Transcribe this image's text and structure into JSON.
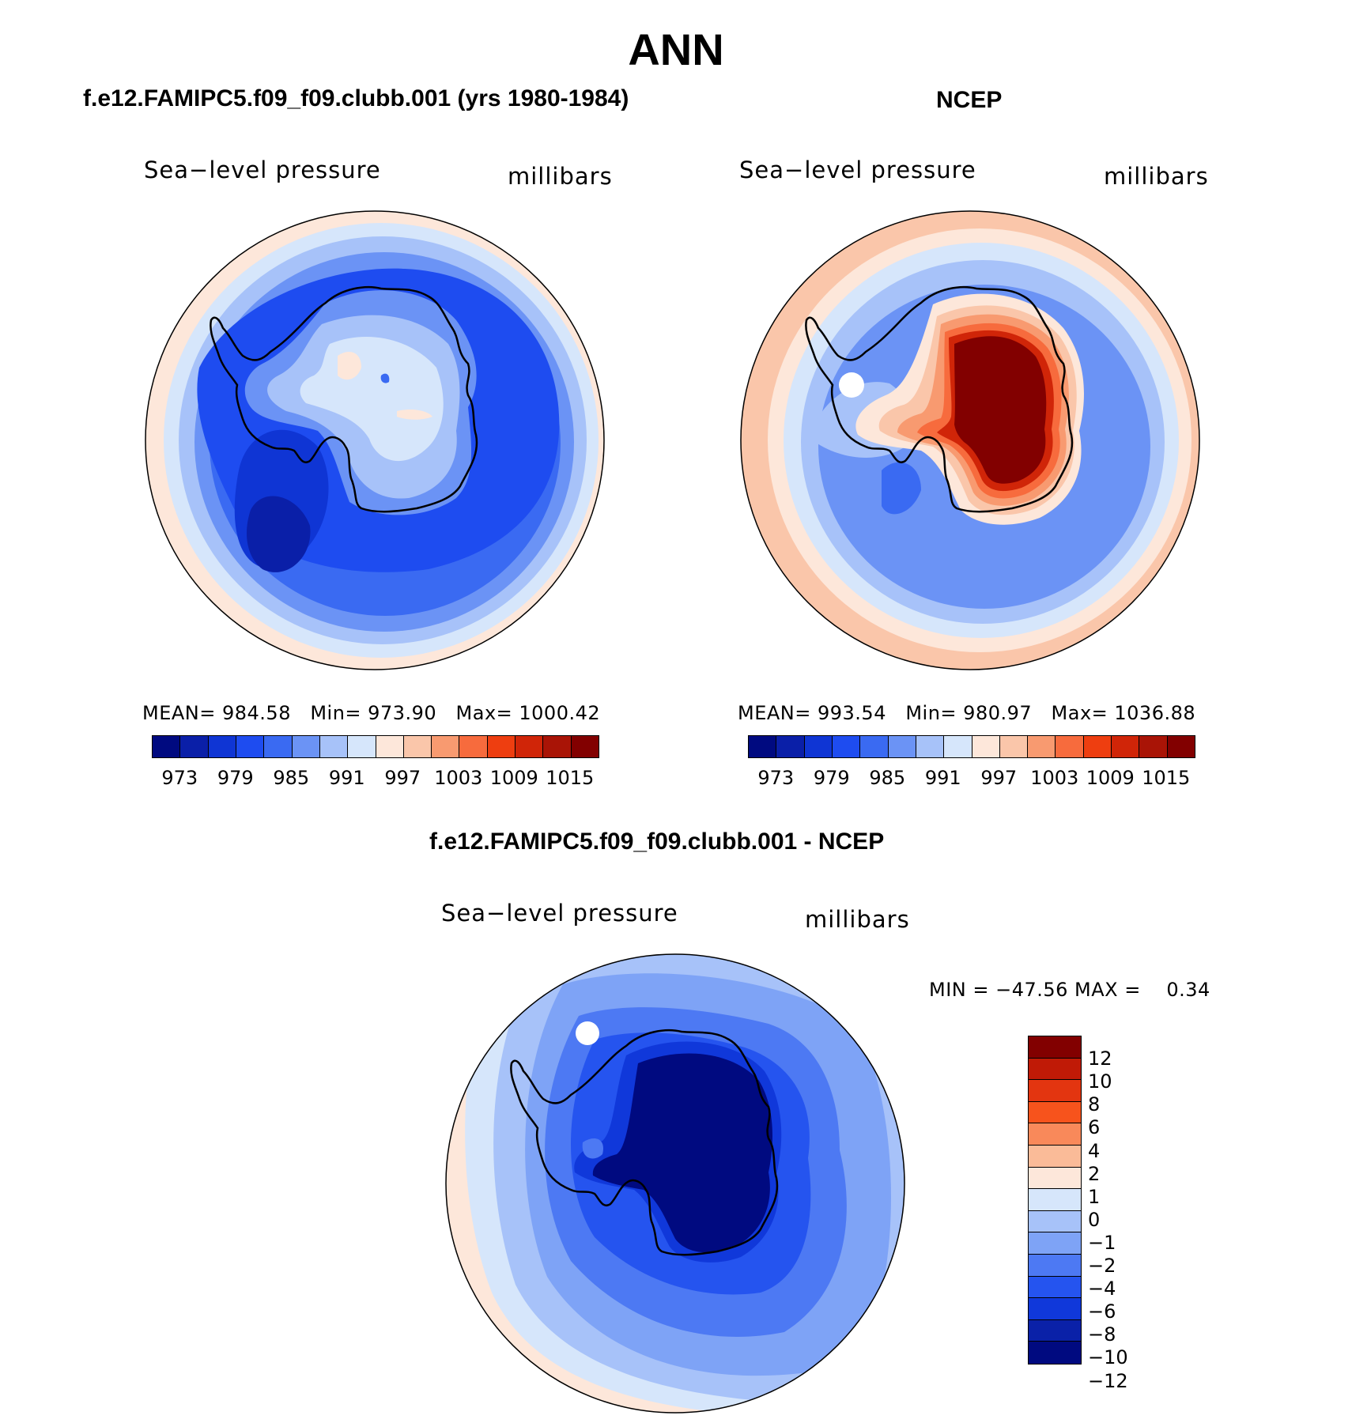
{
  "page_title": "ANN",
  "panels": {
    "model": {
      "title": "f.e12.FAMIPC5.f09_f09.clubb.001 (yrs 1980-1984)",
      "variable": "Sea−level pressure",
      "units": "millibars",
      "stats": "MEAN= 984.58   Min= 973.90   Max= 1000.42"
    },
    "obs": {
      "title": "NCEP",
      "variable": "Sea−level pressure",
      "units": "millibars",
      "stats": "MEAN= 993.54   Min= 980.97   Max= 1036.88"
    },
    "diff": {
      "title": "f.e12.FAMIPC5.f09_f09.clubb.001 - NCEP",
      "variable": "Sea−level pressure",
      "units": "millibars",
      "stats": "MIN = −47.56 MAX =    0.34"
    }
  },
  "colorbar_abs": {
    "labels": [
      "973",
      "979",
      "985",
      "991",
      "997",
      "1003",
      "1009",
      "1015"
    ],
    "colors": [
      "#000a80",
      "#0a1fa8",
      "#0f35d4",
      "#1e4cf0",
      "#3a6af2",
      "#6b93f5",
      "#a7c2f9",
      "#d6e6fb",
      "#fde7da",
      "#fac6aa",
      "#f89a70",
      "#f76b3d",
      "#ee3e10",
      "#d02508",
      "#a91406",
      "#820000"
    ]
  },
  "colorbar_diff": {
    "labels": [
      "12",
      "10",
      "8",
      "6",
      "4",
      "2",
      "1",
      "0",
      "−1",
      "−2",
      "−4",
      "−6",
      "−8",
      "−10",
      "−12"
    ],
    "colors": [
      "#820000",
      "#c01a06",
      "#e33510",
      "#f7531c",
      "#f9895a",
      "#fabb98",
      "#fde7da",
      "#d6e6fb",
      "#a7c2f9",
      "#7ea3f6",
      "#4d79f3",
      "#2554ef",
      "#1038da",
      "#0a21a8",
      "#000a80"
    ]
  }
}
